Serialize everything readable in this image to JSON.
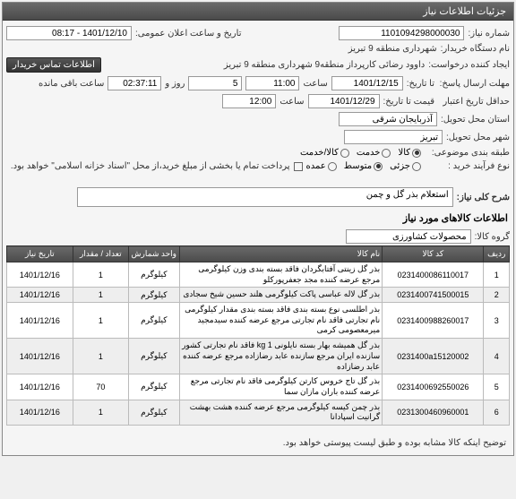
{
  "panel_title": "جزئیات اطلاعات نیاز",
  "fields": {
    "req_no_label": "شماره نیاز:",
    "req_no": "1101094298000030",
    "announce_label": "تاریخ و ساعت اعلان عمومی:",
    "announce": "1401/12/10 - 08:17",
    "buyer_label": "نام دستگاه خریدار:",
    "buyer": "شهرداری منطقه 9 تبریز",
    "creator_label": "ایجاد کننده درخواست:",
    "creator": "داوود رضائی کارپرداز منطقه9 شهرداری منطقه 9 تبریز",
    "contact_btn": "اطلاعات تماس خریدار",
    "deadline_label": "مهلت ارسال پاسخ:",
    "to_label": "تا تاریخ:",
    "d1_date": "1401/12/15",
    "d1_time_label": "ساعت",
    "d1_time": "11:00",
    "d1_days": "5",
    "d1_days_label": "روز و",
    "d1_remain": "02:37:11",
    "d1_remain_label": "ساعت باقی مانده",
    "credit_label": "حداقل تاریخ اعتبار",
    "price_to_label": "قیمت تا تاریخ:",
    "d2_date": "1401/12/29",
    "d2_time_label": "ساعت",
    "d2_time": "12:00",
    "province_label": "استان محل تحویل:",
    "province": "آذربایجان شرقی",
    "city_label": "شهر محل تحویل:",
    "city": "تبریز",
    "topic_label": "طبقه بندی موضوعی:",
    "topic_opts": [
      "کالا",
      "خدمت",
      "کالا/خدمت"
    ],
    "buy_process_label": "نوع فرآیند خرید :",
    "buy_process_opts": [
      "جزئی",
      "متوسط",
      "عمده"
    ],
    "payment_note": "پرداخت تمام یا بخشی از مبلغ خرید،از محل \"اسناد خزانه اسلامی\" خواهد بود.",
    "desc_label": "شرح کلی نیاز:",
    "desc": "استعلام بذر گل و چمن",
    "goods_title": "اطلاعات کالاهای مورد نیاز",
    "group_label": "گروه کالا:",
    "group": "محصولات کشاورزی"
  },
  "table": {
    "headers": [
      "ردیف",
      "کد کالا",
      "نام کالا",
      "واحد شمارش",
      "تعداد / مقدار",
      "تاریخ نیاز"
    ],
    "rows": [
      [
        "1",
        "0231400086110017",
        "بذر گل زینتی آفتابگردان فاقد بسته بندی وزن کیلوگرمی مرجع عرضه کننده مجد جعفرپورکلو",
        "کیلوگرم",
        "1",
        "1401/12/16"
      ],
      [
        "2",
        "0231400741500015",
        "بذر گل لاله عباسی پاکت کیلوگرمی هلند حسین شیخ سجادی",
        "کیلوگرم",
        "1",
        "1401/12/16"
      ],
      [
        "3",
        "0231400988260017",
        "بذر اطلسی نوع بسته بندی فاقد بسته بندی مقدار کیلوگرمی نام تجارتی فاقد نام تجارتی مرجع عرضه کننده سیدمجید میرمعصومی کرمی",
        "کیلوگرم",
        "1",
        "1401/12/16"
      ],
      [
        "4",
        "0231400a15120002",
        "بذر گل همیشه بهار بسته نایلونی 1 kg فاقد نام تجارتی کشور سازنده ایران مرجع سازنده عابد رضازاده مرجع عرضه کننده عابد رضازاده",
        "کیلوگرم",
        "1",
        "1401/12/16"
      ],
      [
        "5",
        "0231400692550026",
        "بذر گل تاج خروس کارتن کیلوگرمی فاقد نام تجارتی مرجع عرضه کننده باران مازان سما",
        "کیلوگرم",
        "70",
        "1401/12/16"
      ],
      [
        "6",
        "0231300460960001",
        "بذر چمن کیسه کیلوگرمی مرجع عرضه کننده هشت بهشت گرانیت اسپادانا",
        "کیلوگرم",
        "1",
        "1401/12/16"
      ]
    ]
  },
  "footer_note": "توضیح اینکه کالا مشابه بوده و طبق لیست پیوستی خواهد بود."
}
